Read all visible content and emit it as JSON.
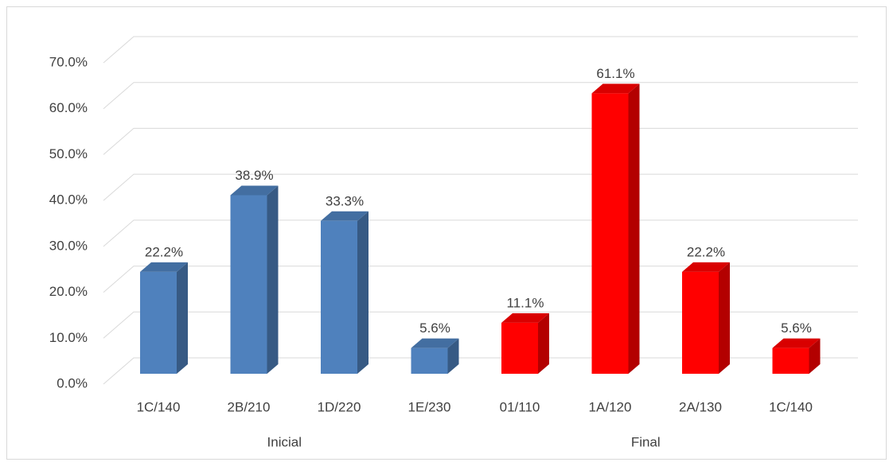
{
  "chart_data": {
    "type": "bar3d",
    "series": [
      {
        "name": "Inicial",
        "color": "#4f81bd",
        "categories": [
          "1C/140",
          "2B/210",
          "1D/220",
          "1E/230"
        ],
        "values": [
          22.2,
          38.9,
          33.3,
          5.6
        ],
        "value_labels": [
          "22.2%",
          "38.9%",
          "33.3%",
          "5.6%"
        ]
      },
      {
        "name": "Final",
        "color": "#ff0000",
        "categories": [
          "01/110",
          "1A/120",
          "2A/130",
          "1C/140"
        ],
        "values": [
          11.1,
          61.1,
          22.2,
          5.6
        ],
        "value_labels": [
          "11.1%",
          "61.1%",
          "22.2%",
          "5.6%"
        ]
      }
    ],
    "ylim": [
      0,
      70
    ],
    "yticks": [
      {
        "value": 0,
        "label": "0.0%"
      },
      {
        "value": 10,
        "label": "10.0%"
      },
      {
        "value": 20,
        "label": "20.0%"
      },
      {
        "value": 30,
        "label": "30.0%"
      },
      {
        "value": 40,
        "label": "40.0%"
      },
      {
        "value": 50,
        "label": "50.0%"
      },
      {
        "value": 60,
        "label": "60.0%"
      },
      {
        "value": 70,
        "label": "70.0%"
      }
    ],
    "grid": true
  }
}
